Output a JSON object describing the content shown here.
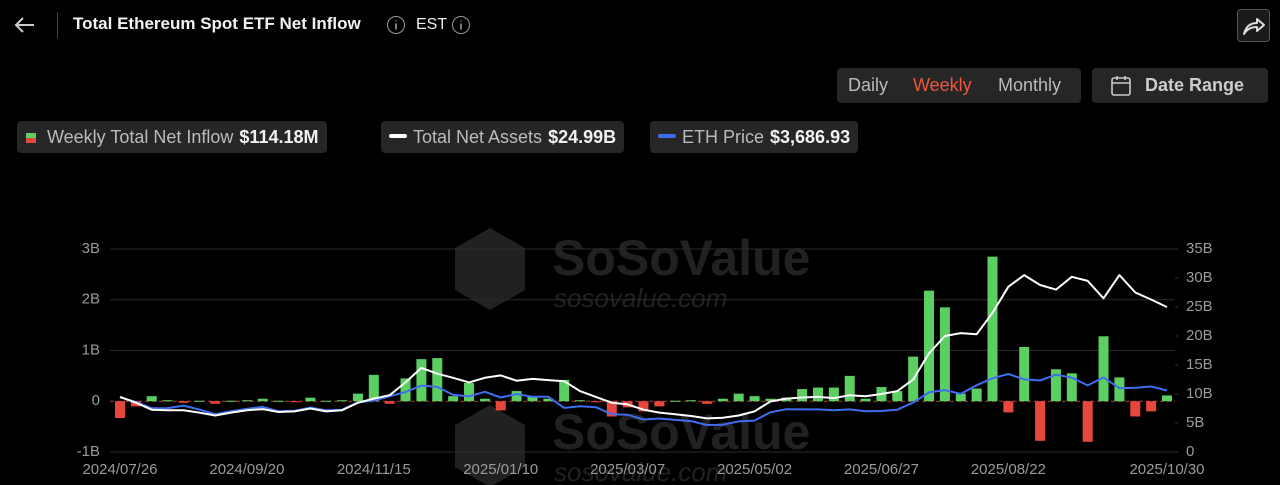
{
  "header": {
    "title": "Total Ethereum Spot ETF Net Inflow",
    "timezone": "EST"
  },
  "controls": {
    "periods": [
      "Daily",
      "Weekly",
      "Monthly"
    ],
    "active_period": 1,
    "date_range": "Date Range"
  },
  "watermark": {
    "brand": "SoSoValue",
    "site": "sosovalue.com"
  },
  "chart_data": {
    "type": "bar",
    "categories": [
      "2024/07/26",
      null,
      null,
      null,
      null,
      null,
      null,
      null,
      "2024/09/20",
      null,
      null,
      null,
      null,
      null,
      null,
      null,
      "2024/11/15",
      null,
      null,
      null,
      null,
      null,
      null,
      null,
      "2025/01/10",
      null,
      null,
      null,
      null,
      null,
      null,
      null,
      "2025/03/07",
      null,
      null,
      null,
      null,
      null,
      null,
      null,
      "2025/05/02",
      null,
      null,
      null,
      null,
      null,
      null,
      null,
      "2025/06/27",
      null,
      null,
      null,
      null,
      null,
      null,
      null,
      "2025/08/22",
      null,
      null,
      null,
      null,
      null,
      null,
      null,
      null,
      null,
      "2025/10/30"
    ],
    "ylim": [
      -1,
      3
    ],
    "yticks": [
      {
        "value": -1,
        "label": "-1B"
      },
      0,
      {
        "value": 1,
        "label": "1B"
      },
      {
        "value": 2,
        "label": "2B"
      },
      {
        "value": 3,
        "label": "3B"
      }
    ],
    "y2lim": [
      0,
      35
    ],
    "y2ticks": [
      0,
      {
        "value": 5,
        "label": "5B"
      },
      {
        "value": 10,
        "label": "10B"
      },
      {
        "value": 15,
        "label": "15B"
      },
      {
        "value": 20,
        "label": "20B"
      },
      {
        "value": 25,
        "label": "25B"
      },
      {
        "value": 30,
        "label": "30B"
      },
      {
        "value": 35,
        "label": "35B"
      }
    ],
    "grid": true,
    "series": [
      {
        "name": "Weekly Total Net Inflow",
        "type": "bar",
        "color": "#5ccf63",
        "negative_color": "#e8473d",
        "legend_value": "$114.18M",
        "values": [
          -0.33,
          -0.1,
          0.1,
          0.02,
          -0.03,
          0.01,
          -0.05,
          0.01,
          0.02,
          0.05,
          0.01,
          -0.02,
          0.07,
          0.01,
          0.02,
          0.15,
          0.52,
          -0.05,
          0.45,
          0.83,
          0.85,
          0.1,
          0.36,
          0.05,
          -0.18,
          0.2,
          0.1,
          0.05,
          0.42,
          0.02,
          -0.01,
          -0.3,
          -0.12,
          -0.2,
          -0.1,
          0.01,
          0.02,
          -0.05,
          0.05,
          0.15,
          0.1,
          0.05,
          0.07,
          0.24,
          0.27,
          0.27,
          0.5,
          0.05,
          0.28,
          0.2,
          0.88,
          2.18,
          1.85,
          0.15,
          0.25,
          2.85,
          -0.22,
          1.07,
          -0.78,
          0.63,
          0.55,
          -0.8,
          1.28,
          0.47,
          -0.3,
          -0.2,
          0.11418
        ]
      },
      {
        "name": "Total Net Assets",
        "type": "line",
        "axis": "y2",
        "color": "#ffffff",
        "legend_value": "$24.99B",
        "values": [
          9.5,
          8.5,
          7.3,
          7.2,
          7.2,
          6.8,
          6.3,
          6.8,
          7.2,
          7.4,
          6.9,
          7.0,
          7.5,
          7.0,
          7.2,
          8.5,
          9.2,
          9.8,
          12,
          14.5,
          13.5,
          12.8,
          12.0,
          12.8,
          13.2,
          12.3,
          12.6,
          12.4,
          12.2,
          10.5,
          9.5,
          8.5,
          8.2,
          7.3,
          6.8,
          6.5,
          6.2,
          5.8,
          5.9,
          6.3,
          7.0,
          8.7,
          9.2,
          9.4,
          9.5,
          9.3,
          9.8,
          9.6,
          10.0,
          10.5,
          12.5,
          17,
          20,
          20.5,
          20.3,
          24,
          28.5,
          30.5,
          28.8,
          28.0,
          30.2,
          29.5,
          26.5,
          30.5,
          27.5,
          26.3,
          24.99
        ]
      },
      {
        "name": "ETH Price",
        "type": "line",
        "axis": "hidden",
        "color": "#3f6df0",
        "legend_value": "$3,686.93",
        "values": [
          3270,
          2990,
          2600,
          2610,
          2760,
          2520,
          2230,
          2420,
          2560,
          2690,
          2410,
          2440,
          2640,
          2480,
          2510,
          2960,
          3070,
          3340,
          3590,
          3990,
          3910,
          3420,
          3330,
          3610,
          3260,
          3470,
          3300,
          3300,
          2620,
          2720,
          2660,
          2230,
          2200,
          1910,
          1970,
          1880,
          1810,
          1570,
          1590,
          1790,
          1840,
          2350,
          2540,
          2530,
          2530,
          2480,
          2530,
          2410,
          2430,
          2510,
          2950,
          3570,
          3710,
          3480,
          4010,
          4440,
          4700,
          4370,
          4300,
          4660,
          4470,
          4000,
          4490,
          3830,
          3850,
          3930,
          3686.93
        ]
      }
    ]
  }
}
